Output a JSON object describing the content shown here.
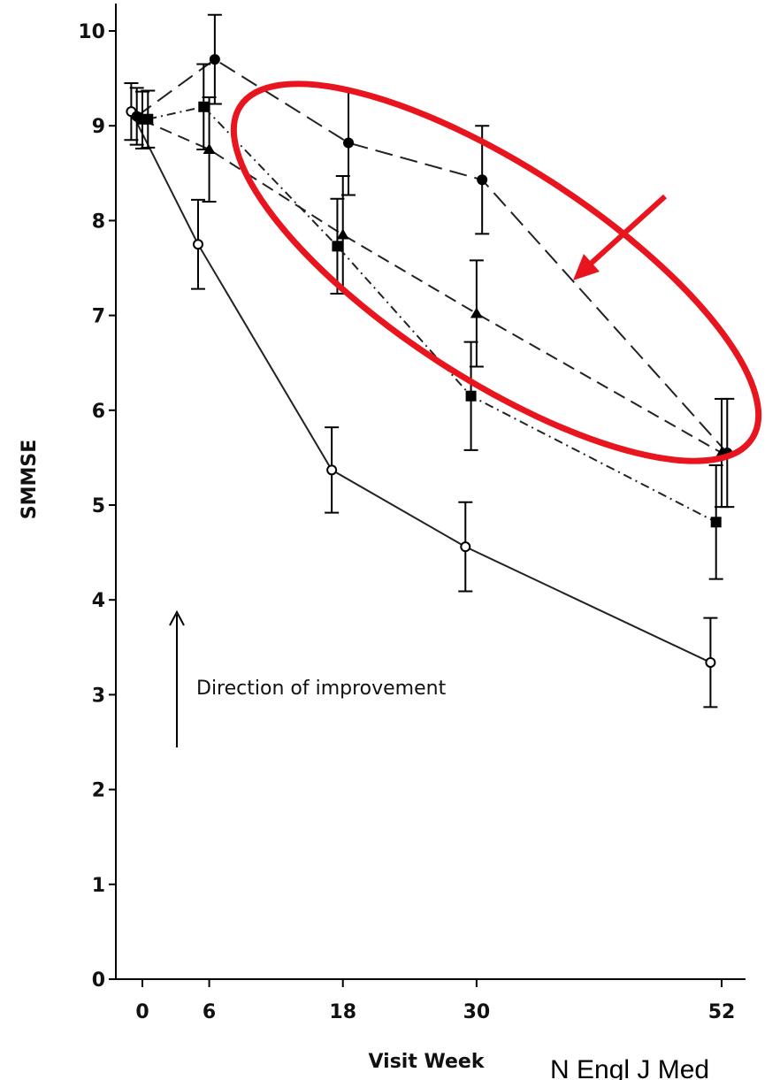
{
  "chart_data": {
    "type": "line",
    "title": "",
    "xlabel": "Visit Week",
    "ylabel": "SMMSE",
    "xticks": [
      0,
      6,
      18,
      30,
      52
    ],
    "yticks": [
      0,
      1,
      2,
      3,
      4,
      5,
      6,
      7,
      8,
      9,
      10
    ],
    "xlim": [
      -2,
      53
    ],
    "ylim": [
      0,
      10.2
    ],
    "grid": false,
    "series": [
      {
        "marker": "open-circle",
        "dash": "solid",
        "points": [
          {
            "x": -1,
            "y": 9.15,
            "err": 0.3
          },
          {
            "x": 5,
            "y": 7.75,
            "err": 0.47
          },
          {
            "x": 17,
            "y": 5.37,
            "err": 0.45
          },
          {
            "x": 29,
            "y": 4.56,
            "err": 0.47
          },
          {
            "x": 51,
            "y": 3.34,
            "err": 0.47
          }
        ]
      },
      {
        "marker": "filled-circle",
        "dash": "long-dash",
        "points": [
          {
            "x": -0.5,
            "y": 9.1,
            "err": 0.3
          },
          {
            "x": 6.5,
            "y": 9.7,
            "err": 0.47
          },
          {
            "x": 18.5,
            "y": 8.82,
            "err": 0.55
          },
          {
            "x": 30.5,
            "y": 8.43,
            "err": 0.57
          },
          {
            "x": 52.5,
            "y": 5.55,
            "err": 0.57
          }
        ]
      },
      {
        "marker": "filled-triangle",
        "dash": "dash",
        "points": [
          {
            "x": 0,
            "y": 9.06,
            "err": 0.3
          },
          {
            "x": 6,
            "y": 8.75,
            "err": 0.55
          },
          {
            "x": 18,
            "y": 7.85,
            "err": 0.62
          },
          {
            "x": 30,
            "y": 7.02,
            "err": 0.56
          },
          {
            "x": 52,
            "y": 5.55,
            "err": 0.57
          }
        ]
      },
      {
        "marker": "filled-square",
        "dash": "dash-dot",
        "points": [
          {
            "x": 0.5,
            "y": 9.07,
            "err": 0.3
          },
          {
            "x": 5.5,
            "y": 9.2,
            "err": 0.45
          },
          {
            "x": 17.5,
            "y": 7.73,
            "err": 0.5
          },
          {
            "x": 29.5,
            "y": 6.15,
            "err": 0.57
          },
          {
            "x": 51.5,
            "y": 4.82,
            "err": 0.6
          }
        ]
      }
    ],
    "annotations": {
      "direction_text": "Direction of improvement",
      "highlight_color": "#e8141e"
    },
    "citation": "N Engl J Med"
  }
}
